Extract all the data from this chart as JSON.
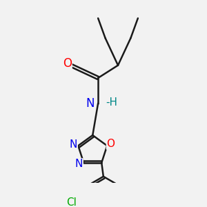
{
  "bg_color": "#f2f2f2",
  "bond_color": "#1a1a1a",
  "bond_width": 1.8,
  "atom_colors": {
    "O": "#ff0000",
    "N": "#0000ee",
    "Cl": "#00aa00",
    "C": "#1a1a1a",
    "H": "#008888"
  },
  "font_size": 11,
  "fig_size": [
    3.0,
    3.0
  ],
  "dpi": 100
}
